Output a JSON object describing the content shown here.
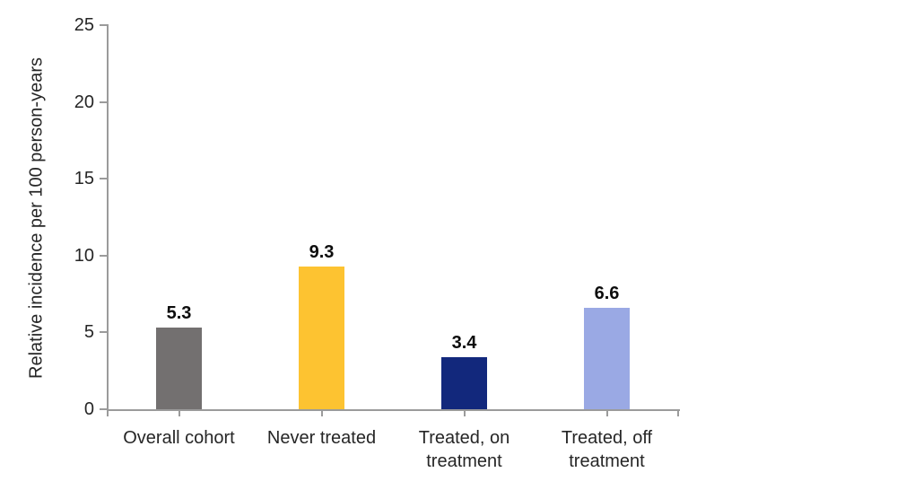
{
  "chart_data": {
    "type": "bar",
    "title": "",
    "xlabel": "",
    "ylabel": "Relative incidence per 100 person-years",
    "categories": [
      "Overall cohort",
      "Never treated",
      "Treated, on\ntreatment",
      "Treated, off\ntreatment"
    ],
    "values": [
      5.3,
      9.3,
      3.4,
      6.6
    ],
    "value_labels": [
      "5.3",
      "9.3",
      "3.4",
      "6.6"
    ],
    "bar_colors": [
      "#737070",
      "#fdc331",
      "#12287c",
      "#9aa9e4"
    ],
    "ylim": [
      0,
      25
    ],
    "yticks": [
      0,
      5,
      10,
      15,
      20,
      25
    ],
    "grid": "off",
    "legend": "none",
    "axis_color": "#9b9b9b",
    "text_color": "#262626",
    "background_color": "#ffffff"
  }
}
